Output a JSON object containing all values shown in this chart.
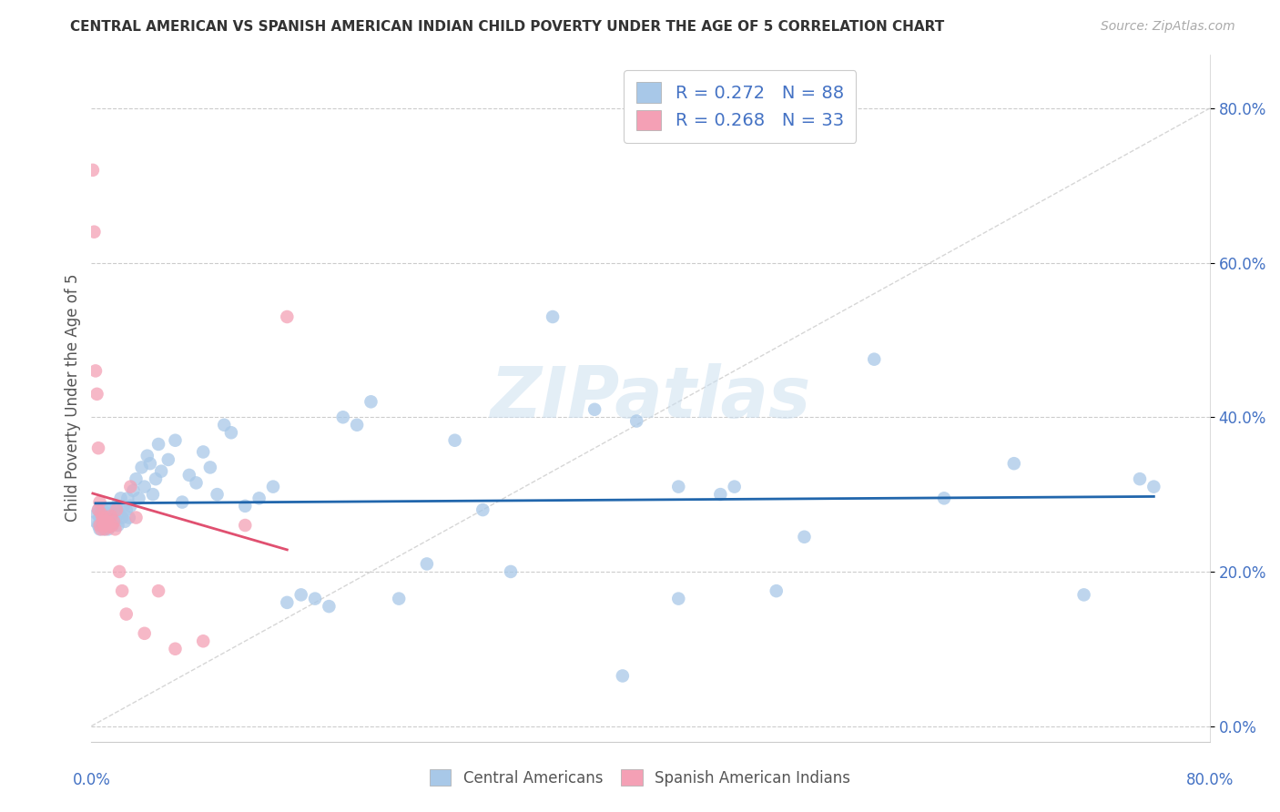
{
  "title": "CENTRAL AMERICAN VS SPANISH AMERICAN INDIAN CHILD POVERTY UNDER THE AGE OF 5 CORRELATION CHART",
  "source": "Source: ZipAtlas.com",
  "ylabel": "Child Poverty Under the Age of 5",
  "xlim": [
    0.0,
    0.8
  ],
  "ylim": [
    -0.02,
    0.87
  ],
  "yticks": [
    0.0,
    0.2,
    0.4,
    0.6,
    0.8
  ],
  "blue_color": "#a8c8e8",
  "pink_color": "#f4a0b5",
  "blue_line_color": "#2166ac",
  "pink_line_color": "#e05070",
  "diagonal_color": "#cccccc",
  "R_blue": 0.272,
  "N_blue": 88,
  "R_pink": 0.268,
  "N_pink": 33,
  "legend_label_blue": "Central Americans",
  "legend_label_pink": "Spanish American Indians",
  "blue_scatter_x": [
    0.003,
    0.004,
    0.005,
    0.005,
    0.006,
    0.006,
    0.007,
    0.007,
    0.008,
    0.008,
    0.009,
    0.009,
    0.01,
    0.01,
    0.011,
    0.011,
    0.012,
    0.012,
    0.013,
    0.013,
    0.014,
    0.015,
    0.015,
    0.016,
    0.017,
    0.018,
    0.019,
    0.02,
    0.021,
    0.022,
    0.023,
    0.024,
    0.025,
    0.026,
    0.027,
    0.028,
    0.03,
    0.032,
    0.034,
    0.036,
    0.038,
    0.04,
    0.042,
    0.044,
    0.046,
    0.048,
    0.05,
    0.055,
    0.06,
    0.065,
    0.07,
    0.075,
    0.08,
    0.085,
    0.09,
    0.095,
    0.1,
    0.11,
    0.12,
    0.13,
    0.14,
    0.15,
    0.16,
    0.17,
    0.18,
    0.19,
    0.2,
    0.22,
    0.24,
    0.26,
    0.28,
    0.3,
    0.33,
    0.36,
    0.39,
    0.42,
    0.45,
    0.49,
    0.38,
    0.42,
    0.46,
    0.51,
    0.56,
    0.61,
    0.66,
    0.71,
    0.75,
    0.76
  ],
  "blue_scatter_y": [
    0.265,
    0.275,
    0.26,
    0.28,
    0.27,
    0.255,
    0.275,
    0.26,
    0.265,
    0.28,
    0.27,
    0.255,
    0.275,
    0.265,
    0.28,
    0.26,
    0.27,
    0.255,
    0.265,
    0.275,
    0.28,
    0.26,
    0.275,
    0.265,
    0.27,
    0.285,
    0.26,
    0.275,
    0.295,
    0.27,
    0.285,
    0.265,
    0.28,
    0.295,
    0.27,
    0.285,
    0.305,
    0.32,
    0.295,
    0.335,
    0.31,
    0.35,
    0.34,
    0.3,
    0.32,
    0.365,
    0.33,
    0.345,
    0.37,
    0.29,
    0.325,
    0.315,
    0.355,
    0.335,
    0.3,
    0.39,
    0.38,
    0.285,
    0.295,
    0.31,
    0.16,
    0.17,
    0.165,
    0.155,
    0.4,
    0.39,
    0.42,
    0.165,
    0.21,
    0.37,
    0.28,
    0.2,
    0.53,
    0.41,
    0.395,
    0.31,
    0.3,
    0.175,
    0.065,
    0.165,
    0.31,
    0.245,
    0.475,
    0.295,
    0.34,
    0.17,
    0.32,
    0.31
  ],
  "pink_scatter_x": [
    0.001,
    0.002,
    0.003,
    0.004,
    0.005,
    0.005,
    0.006,
    0.006,
    0.007,
    0.007,
    0.008,
    0.008,
    0.009,
    0.01,
    0.011,
    0.012,
    0.013,
    0.014,
    0.015,
    0.016,
    0.017,
    0.018,
    0.02,
    0.022,
    0.025,
    0.028,
    0.032,
    0.038,
    0.048,
    0.06,
    0.08,
    0.11,
    0.14
  ],
  "pink_scatter_y": [
    0.72,
    0.64,
    0.46,
    0.43,
    0.36,
    0.28,
    0.29,
    0.26,
    0.275,
    0.255,
    0.265,
    0.27,
    0.26,
    0.255,
    0.27,
    0.265,
    0.258,
    0.272,
    0.26,
    0.265,
    0.255,
    0.28,
    0.2,
    0.175,
    0.145,
    0.31,
    0.27,
    0.12,
    0.175,
    0.1,
    0.11,
    0.26,
    0.53
  ]
}
